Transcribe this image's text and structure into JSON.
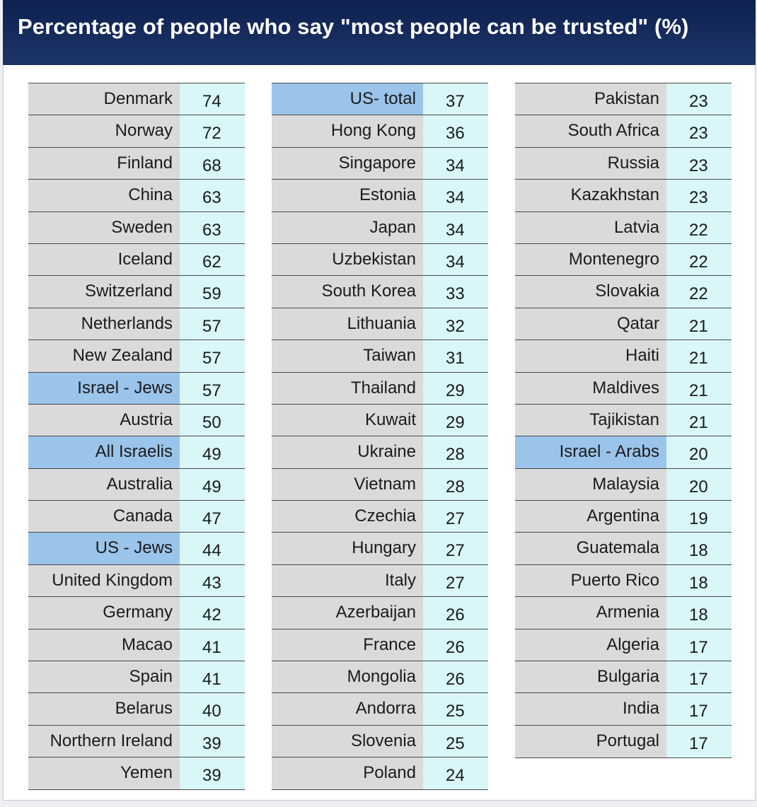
{
  "title": "Percentage of people who say \"most people can be trusted\" (%)",
  "colors": {
    "header_bg": "#132a5c",
    "name_cell": "#dadadb",
    "highlight_cell": "#9bc4ea",
    "value_cell": "#d9f6f8"
  },
  "chart_data": {
    "type": "table",
    "title": "Percentage of people who say \"most people can be trusted\" (%)",
    "columns": [
      [
        {
          "name": "Denmark",
          "value": 74
        },
        {
          "name": "Norway",
          "value": 72
        },
        {
          "name": "Finland",
          "value": 68
        },
        {
          "name": "China",
          "value": 63
        },
        {
          "name": "Sweden",
          "value": 63
        },
        {
          "name": "Iceland",
          "value": 62
        },
        {
          "name": "Switzerland",
          "value": 59
        },
        {
          "name": "Netherlands",
          "value": 57
        },
        {
          "name": "New Zealand",
          "value": 57
        },
        {
          "name": "Israel - Jews",
          "value": 57,
          "highlight": true
        },
        {
          "name": "Austria",
          "value": 50
        },
        {
          "name": "All Israelis",
          "value": 49,
          "highlight": true
        },
        {
          "name": "Australia",
          "value": 49
        },
        {
          "name": "Canada",
          "value": 47
        },
        {
          "name": "US - Jews",
          "value": 44,
          "highlight": true
        },
        {
          "name": "United Kingdom",
          "value": 43
        },
        {
          "name": "Germany",
          "value": 42
        },
        {
          "name": "Macao",
          "value": 41
        },
        {
          "name": "Spain",
          "value": 41
        },
        {
          "name": "Belarus",
          "value": 40
        },
        {
          "name": "Northern Ireland",
          "value": 39
        },
        {
          "name": "Yemen",
          "value": 39
        }
      ],
      [
        {
          "name": "US- total",
          "value": 37,
          "highlight": true
        },
        {
          "name": "Hong Kong",
          "value": 36
        },
        {
          "name": "Singapore",
          "value": 34
        },
        {
          "name": "Estonia",
          "value": 34
        },
        {
          "name": "Japan",
          "value": 34
        },
        {
          "name": "Uzbekistan",
          "value": 34
        },
        {
          "name": "South Korea",
          "value": 33
        },
        {
          "name": "Lithuania",
          "value": 32
        },
        {
          "name": "Taiwan",
          "value": 31
        },
        {
          "name": "Thailand",
          "value": 29
        },
        {
          "name": "Kuwait",
          "value": 29
        },
        {
          "name": "Ukraine",
          "value": 28
        },
        {
          "name": "Vietnam",
          "value": 28
        },
        {
          "name": "Czechia",
          "value": 27
        },
        {
          "name": "Hungary",
          "value": 27
        },
        {
          "name": "Italy",
          "value": 27
        },
        {
          "name": "Azerbaijan",
          "value": 26
        },
        {
          "name": "France",
          "value": 26
        },
        {
          "name": "Mongolia",
          "value": 26
        },
        {
          "name": "Andorra",
          "value": 25
        },
        {
          "name": "Slovenia",
          "value": 25
        },
        {
          "name": "Poland",
          "value": 24
        }
      ],
      [
        {
          "name": "Pakistan",
          "value": 23
        },
        {
          "name": "South Africa",
          "value": 23
        },
        {
          "name": "Russia",
          "value": 23
        },
        {
          "name": "Kazakhstan",
          "value": 23
        },
        {
          "name": "Latvia",
          "value": 22
        },
        {
          "name": "Montenegro",
          "value": 22
        },
        {
          "name": "Slovakia",
          "value": 22
        },
        {
          "name": "Qatar",
          "value": 21
        },
        {
          "name": "Haiti",
          "value": 21
        },
        {
          "name": "Maldives",
          "value": 21
        },
        {
          "name": "Tajikistan",
          "value": 21
        },
        {
          "name": "Israel - Arabs",
          "value": 20,
          "highlight": true
        },
        {
          "name": "Malaysia",
          "value": 20
        },
        {
          "name": "Argentina",
          "value": 19
        },
        {
          "name": "Guatemala",
          "value": 18
        },
        {
          "name": "Puerto Rico",
          "value": 18
        },
        {
          "name": "Armenia",
          "value": 18
        },
        {
          "name": "Algeria",
          "value": 17
        },
        {
          "name": "Bulgaria",
          "value": 17
        },
        {
          "name": "India",
          "value": 17
        },
        {
          "name": "Portugal",
          "value": 17
        }
      ]
    ]
  }
}
